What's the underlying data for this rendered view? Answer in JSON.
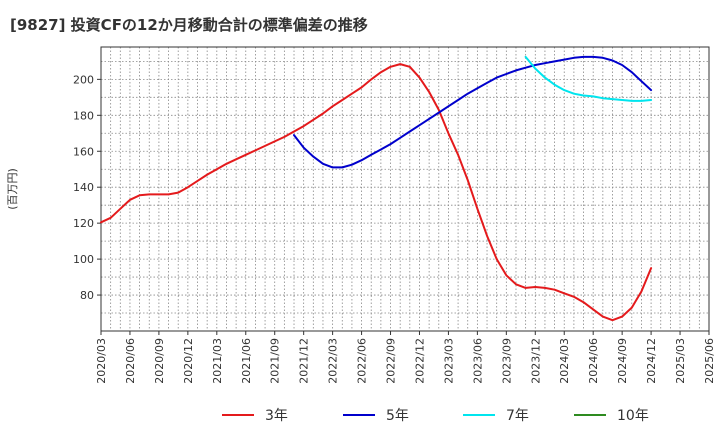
{
  "chart_data": {
    "type": "line",
    "title": "[9827]  投資CFの12か月移動合計の標準偏差の推移",
    "ylabel": "(百万円)",
    "xlabel": "",
    "ylim": [
      60,
      218
    ],
    "xlim": [
      "2020-03",
      "2025-06"
    ],
    "grid": true,
    "legend_position": "bottom",
    "y_ticks": [
      80,
      100,
      120,
      140,
      160,
      180,
      200
    ],
    "x_ticks": [
      "2020/03",
      "2020/06",
      "2020/09",
      "2020/12",
      "2021/03",
      "2021/06",
      "2021/09",
      "2021/12",
      "2022/03",
      "2022/06",
      "2022/09",
      "2022/12",
      "2023/03",
      "2023/06",
      "2023/09",
      "2023/12",
      "2024/03",
      "2024/06",
      "2024/09",
      "2024/12",
      "2025/03",
      "2025/06"
    ],
    "series": [
      {
        "name": "3年",
        "color": "#e41a1c",
        "x": [
          "2020-03",
          "2020-04",
          "2020-05",
          "2020-06",
          "2020-07",
          "2020-08",
          "2020-09",
          "2020-10",
          "2020-11",
          "2020-12",
          "2021-01",
          "2021-02",
          "2021-03",
          "2021-04",
          "2021-05",
          "2021-06",
          "2021-07",
          "2021-08",
          "2021-09",
          "2021-10",
          "2021-11",
          "2021-12",
          "2022-01",
          "2022-02",
          "2022-03",
          "2022-04",
          "2022-05",
          "2022-06",
          "2022-07",
          "2022-08",
          "2022-09",
          "2022-10",
          "2022-11",
          "2022-12",
          "2023-01",
          "2023-02",
          "2023-03",
          "2023-04",
          "2023-05",
          "2023-06",
          "2023-07",
          "2023-08",
          "2023-09",
          "2023-10",
          "2023-11",
          "2023-12",
          "2024-01",
          "2024-02",
          "2024-03",
          "2024-04",
          "2024-05",
          "2024-06",
          "2024-07",
          "2024-08",
          "2024-09",
          "2024-10",
          "2024-11",
          "2024-12"
        ],
        "values": [
          120.5,
          123,
          128,
          133,
          135.5,
          136,
          136,
          136,
          137,
          140,
          143.5,
          147,
          150,
          153,
          155.5,
          158,
          160.5,
          163,
          165.5,
          168,
          171,
          174,
          177.5,
          181,
          185,
          188.5,
          192,
          195.5,
          200,
          204,
          207,
          208.5,
          207,
          201,
          193,
          183,
          170,
          158,
          144,
          128,
          113,
          100,
          91,
          86,
          84,
          84.5,
          84,
          83,
          81,
          79,
          76,
          72,
          68,
          66,
          68,
          73,
          82,
          95
        ]
      },
      {
        "name": "5年",
        "color": "#0000cc",
        "x": [
          "2021-11",
          "2021-12",
          "2022-01",
          "2022-02",
          "2022-03",
          "2022-04",
          "2022-05",
          "2022-06",
          "2022-07",
          "2022-08",
          "2022-09",
          "2022-10",
          "2022-11",
          "2022-12",
          "2023-01",
          "2023-02",
          "2023-03",
          "2023-04",
          "2023-05",
          "2023-06",
          "2023-07",
          "2023-08",
          "2023-09",
          "2023-10",
          "2023-11",
          "2023-12",
          "2024-01",
          "2024-02",
          "2024-03",
          "2024-04",
          "2024-05",
          "2024-06",
          "2024-07",
          "2024-08",
          "2024-09",
          "2024-10",
          "2024-11",
          "2024-12"
        ],
        "values": [
          169,
          162,
          157,
          153,
          151,
          151,
          152.5,
          155,
          158,
          161,
          164,
          167.5,
          171,
          174.5,
          178,
          181.5,
          185,
          188.5,
          192,
          195,
          198,
          201,
          203,
          205,
          206.5,
          208,
          209,
          210,
          211,
          212,
          212.5,
          212.5,
          212,
          210.5,
          208,
          204,
          199,
          194
        ]
      },
      {
        "name": "7年",
        "color": "#00e5ee",
        "x": [
          "2023-11",
          "2023-12",
          "2024-01",
          "2024-02",
          "2024-03",
          "2024-04",
          "2024-05",
          "2024-06",
          "2024-07",
          "2024-08",
          "2024-09",
          "2024-10",
          "2024-11",
          "2024-12"
        ],
        "values": [
          212.5,
          206,
          201,
          197,
          194,
          192,
          191,
          190.5,
          189.5,
          189,
          188.5,
          188,
          188,
          188.5
        ]
      },
      {
        "name": "10年",
        "color": "#2e8b20",
        "x": [],
        "values": []
      }
    ]
  }
}
